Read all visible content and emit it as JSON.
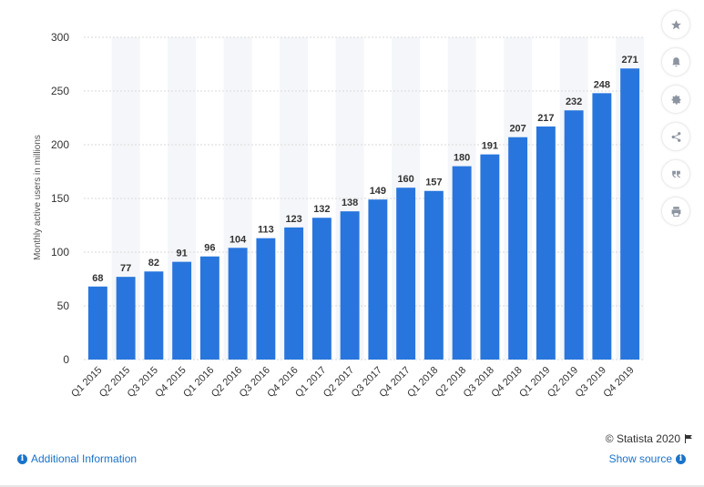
{
  "chart_data": {
    "type": "bar",
    "categories": [
      "Q1 2015",
      "Q2 2015",
      "Q3 2015",
      "Q4 2015",
      "Q1 2016",
      "Q2 2016",
      "Q3 2016",
      "Q4 2016",
      "Q1 2017",
      "Q2 2017",
      "Q3 2017",
      "Q4 2017",
      "Q1 2018",
      "Q2 2018",
      "Q3 2018",
      "Q4 2018",
      "Q1 2019",
      "Q2 2019",
      "Q3 2019",
      "Q4 2019"
    ],
    "values": [
      68,
      77,
      82,
      91,
      96,
      104,
      113,
      123,
      132,
      138,
      149,
      160,
      157,
      180,
      191,
      207,
      217,
      232,
      248,
      271
    ],
    "ylabel": "Monthly active users in millions",
    "xlabel": "",
    "ylim": [
      0,
      300
    ],
    "yticks": [
      0,
      50,
      100,
      150,
      200,
      250,
      300
    ],
    "grid": true,
    "bar_color": "#2876dd"
  },
  "toolbar": [
    {
      "name": "star-icon"
    },
    {
      "name": "bell-icon"
    },
    {
      "name": "gear-icon"
    },
    {
      "name": "share-icon"
    },
    {
      "name": "quote-icon"
    },
    {
      "name": "print-icon"
    }
  ],
  "footer": {
    "credit": "© Statista 2020",
    "additional_info": "Additional Information",
    "show_source": "Show source"
  },
  "colors": {
    "link": "#1a73c9",
    "bar": "#2876dd"
  }
}
